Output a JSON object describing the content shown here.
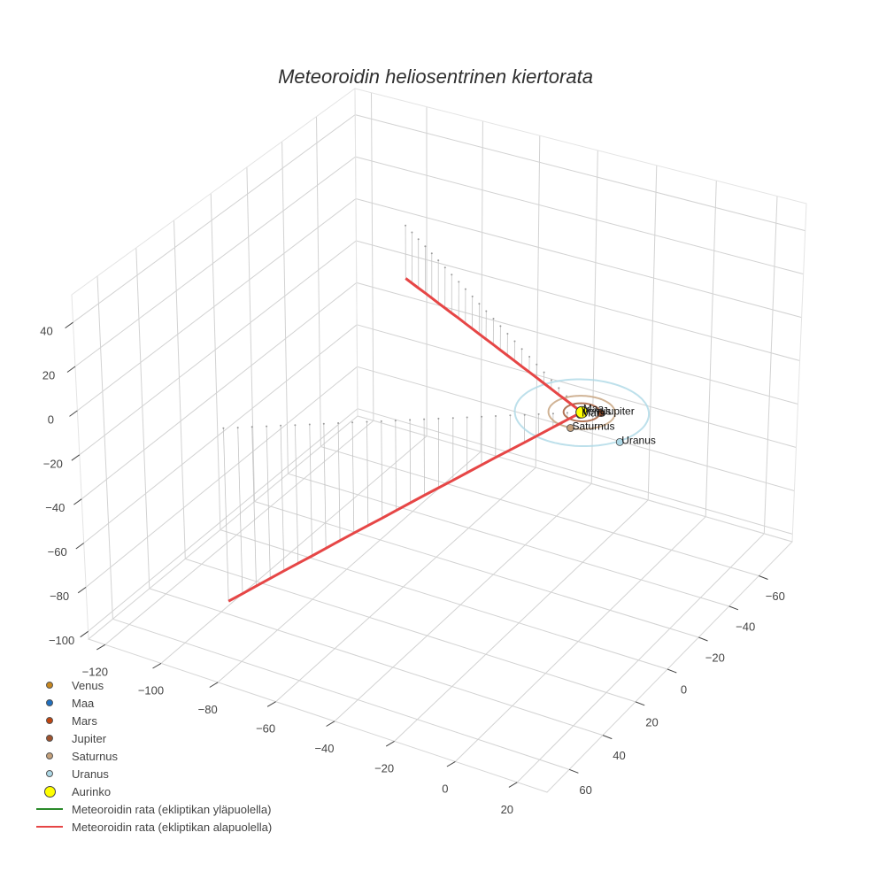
{
  "chart_data": {
    "type": "scatter3d",
    "title": "Meteoroidin heliosentrinen kiertorata",
    "axes": {
      "x": {
        "label": "",
        "range": [
          -126,
          29.5
        ],
        "ticks": [
          -120,
          -100,
          -80,
          -60,
          -40,
          -20,
          0,
          20
        ],
        "tick_labels": [
          "−120",
          "−100",
          "−80",
          "−60",
          "−40",
          "−20",
          "0",
          "20"
        ]
      },
      "y": {
        "label": "",
        "range": [
          -83,
          73
        ],
        "ticks": [
          -60,
          -40,
          -20,
          0,
          20,
          40,
          60
        ],
        "tick_labels": [
          "−60",
          "−40",
          "−20",
          "0",
          "20",
          "40",
          "60"
        ]
      },
      "z": {
        "label": "",
        "range": [
          -103.5,
          52.5
        ],
        "ticks": [
          -100,
          -80,
          -60,
          -40,
          -20,
          0,
          20,
          40
        ],
        "tick_labels": [
          "−100",
          "−80",
          "−60",
          "−40",
          "−20",
          "0",
          "20",
          "40"
        ]
      },
      "grid": true
    },
    "sun": {
      "name": "Aurinko",
      "color": "#ffff00",
      "position": [
        0,
        0,
        0
      ]
    },
    "planets": [
      {
        "name": "Venus",
        "color": "#c8871e",
        "orbit_radius": 0.72,
        "position": [
          -0.3,
          0.65,
          0
        ]
      },
      {
        "name": "Maa",
        "color": "#1f6fbf",
        "orbit_radius": 1.0,
        "position": [
          -0.55,
          -0.85,
          0
        ]
      },
      {
        "name": "Mars",
        "color": "#c1440e",
        "orbit_radius": 1.52,
        "position": [
          0.2,
          1.5,
          0
        ]
      },
      {
        "name": "Jupiter",
        "color": "#a0522d",
        "orbit_radius": 5.2,
        "position": [
          4.9,
          -2.4,
          0
        ]
      },
      {
        "name": "Saturnus",
        "color": "#c4a07a",
        "orbit_radius": 9.54,
        "position": [
          1.5,
          9.5,
          0
        ]
      },
      {
        "name": "Uranus",
        "color": "#add8e6",
        "orbit_radius": 19.19,
        "position": [
          17.3,
          9.4,
          0
        ]
      }
    ],
    "trajectory": {
      "above_label": "Meteoroidin rata (ekliptikan yläpuolella)",
      "below_label": "Meteoroidin rata (ekliptikan alapuolella)",
      "above_color": "#2a8a2a",
      "below_color": "#e64646",
      "points": [
        [
          -103,
          -75,
          -25
        ],
        [
          -98.9,
          -72,
          -24
        ],
        [
          -94.8,
          -69,
          -23
        ],
        [
          -90.6,
          -66,
          -22
        ],
        [
          -86.5,
          -63,
          -21
        ],
        [
          -82.4,
          -60,
          -20
        ],
        [
          -78.3,
          -57,
          -19
        ],
        [
          -74.2,
          -54,
          -18
        ],
        [
          -70,
          -51,
          -17
        ],
        [
          -65.9,
          -48,
          -16
        ],
        [
          -61.8,
          -45,
          -15
        ],
        [
          -57.7,
          -42,
          -14
        ],
        [
          -53.6,
          -39,
          -13
        ],
        [
          -49.4,
          -36,
          -12
        ],
        [
          -45.3,
          -33,
          -11
        ],
        [
          -41.2,
          -30,
          -10
        ],
        [
          -37.1,
          -27,
          -9
        ],
        [
          -33,
          -24,
          -8
        ],
        [
          -28.8,
          -21,
          -7
        ],
        [
          -24.7,
          -18,
          -6
        ],
        [
          -20.6,
          -15,
          -5
        ],
        [
          -16.5,
          -12,
          -4
        ],
        [
          -12.4,
          -9,
          -3
        ],
        [
          -8.2,
          -6,
          -2
        ],
        [
          -4.1,
          -3,
          -1
        ],
        [
          0,
          0,
          0
        ],
        [
          -3.4,
          2.4,
          -3.1
        ],
        [
          -6.7,
          4.8,
          -6.2
        ],
        [
          -10.1,
          7.2,
          -9.4
        ],
        [
          -13.4,
          9.6,
          -12.5
        ],
        [
          -16.8,
          12,
          -15.6
        ],
        [
          -20.2,
          14.4,
          -18.7
        ],
        [
          -23.5,
          16.8,
          -21.8
        ],
        [
          -26.9,
          19.2,
          -25
        ],
        [
          -30.2,
          21.6,
          -28.1
        ],
        [
          -33.6,
          24,
          -31.2
        ],
        [
          -37,
          26.4,
          -34.3
        ],
        [
          -40.3,
          28.8,
          -37.4
        ],
        [
          -43.7,
          31.2,
          -40.6
        ],
        [
          -47,
          33.6,
          -43.7
        ],
        [
          -50.4,
          36,
          -46.8
        ],
        [
          -53.8,
          38.4,
          -49.9
        ],
        [
          -57.1,
          40.8,
          -53
        ],
        [
          -60.5,
          43.2,
          -56.2
        ],
        [
          -63.8,
          45.6,
          -59.3
        ],
        [
          -67.2,
          48,
          -62.4
        ],
        [
          -70.6,
          50.4,
          -65.5
        ],
        [
          -73.9,
          52.8,
          -68.6
        ],
        [
          -77.3,
          55.2,
          -71.8
        ],
        [
          -80.6,
          57.6,
          -74.9
        ],
        [
          -84,
          60,
          -78
        ]
      ],
      "drop_lines_to_ecliptic": true
    },
    "legend": {
      "position": "bottom-left",
      "items": [
        {
          "label": "Venus",
          "kind": "marker",
          "color": "#c8871e"
        },
        {
          "label": "Maa",
          "kind": "marker",
          "color": "#1f6fbf"
        },
        {
          "label": "Mars",
          "kind": "marker",
          "color": "#c1440e"
        },
        {
          "label": "Jupiter",
          "kind": "marker",
          "color": "#a0522d"
        },
        {
          "label": "Saturnus",
          "kind": "marker",
          "color": "#c4a07a"
        },
        {
          "label": "Uranus",
          "kind": "marker",
          "color": "#add8e6"
        },
        {
          "label": "Aurinko",
          "kind": "marker-large",
          "color": "#ffff00"
        },
        {
          "label": "Meteoroidin rata (ekliptikan yläpuolella)",
          "kind": "line",
          "color": "#2a8a2a"
        },
        {
          "label": "Meteoroidin rata (ekliptikan alapuolella)",
          "kind": "line",
          "color": "#e64646"
        }
      ]
    }
  }
}
